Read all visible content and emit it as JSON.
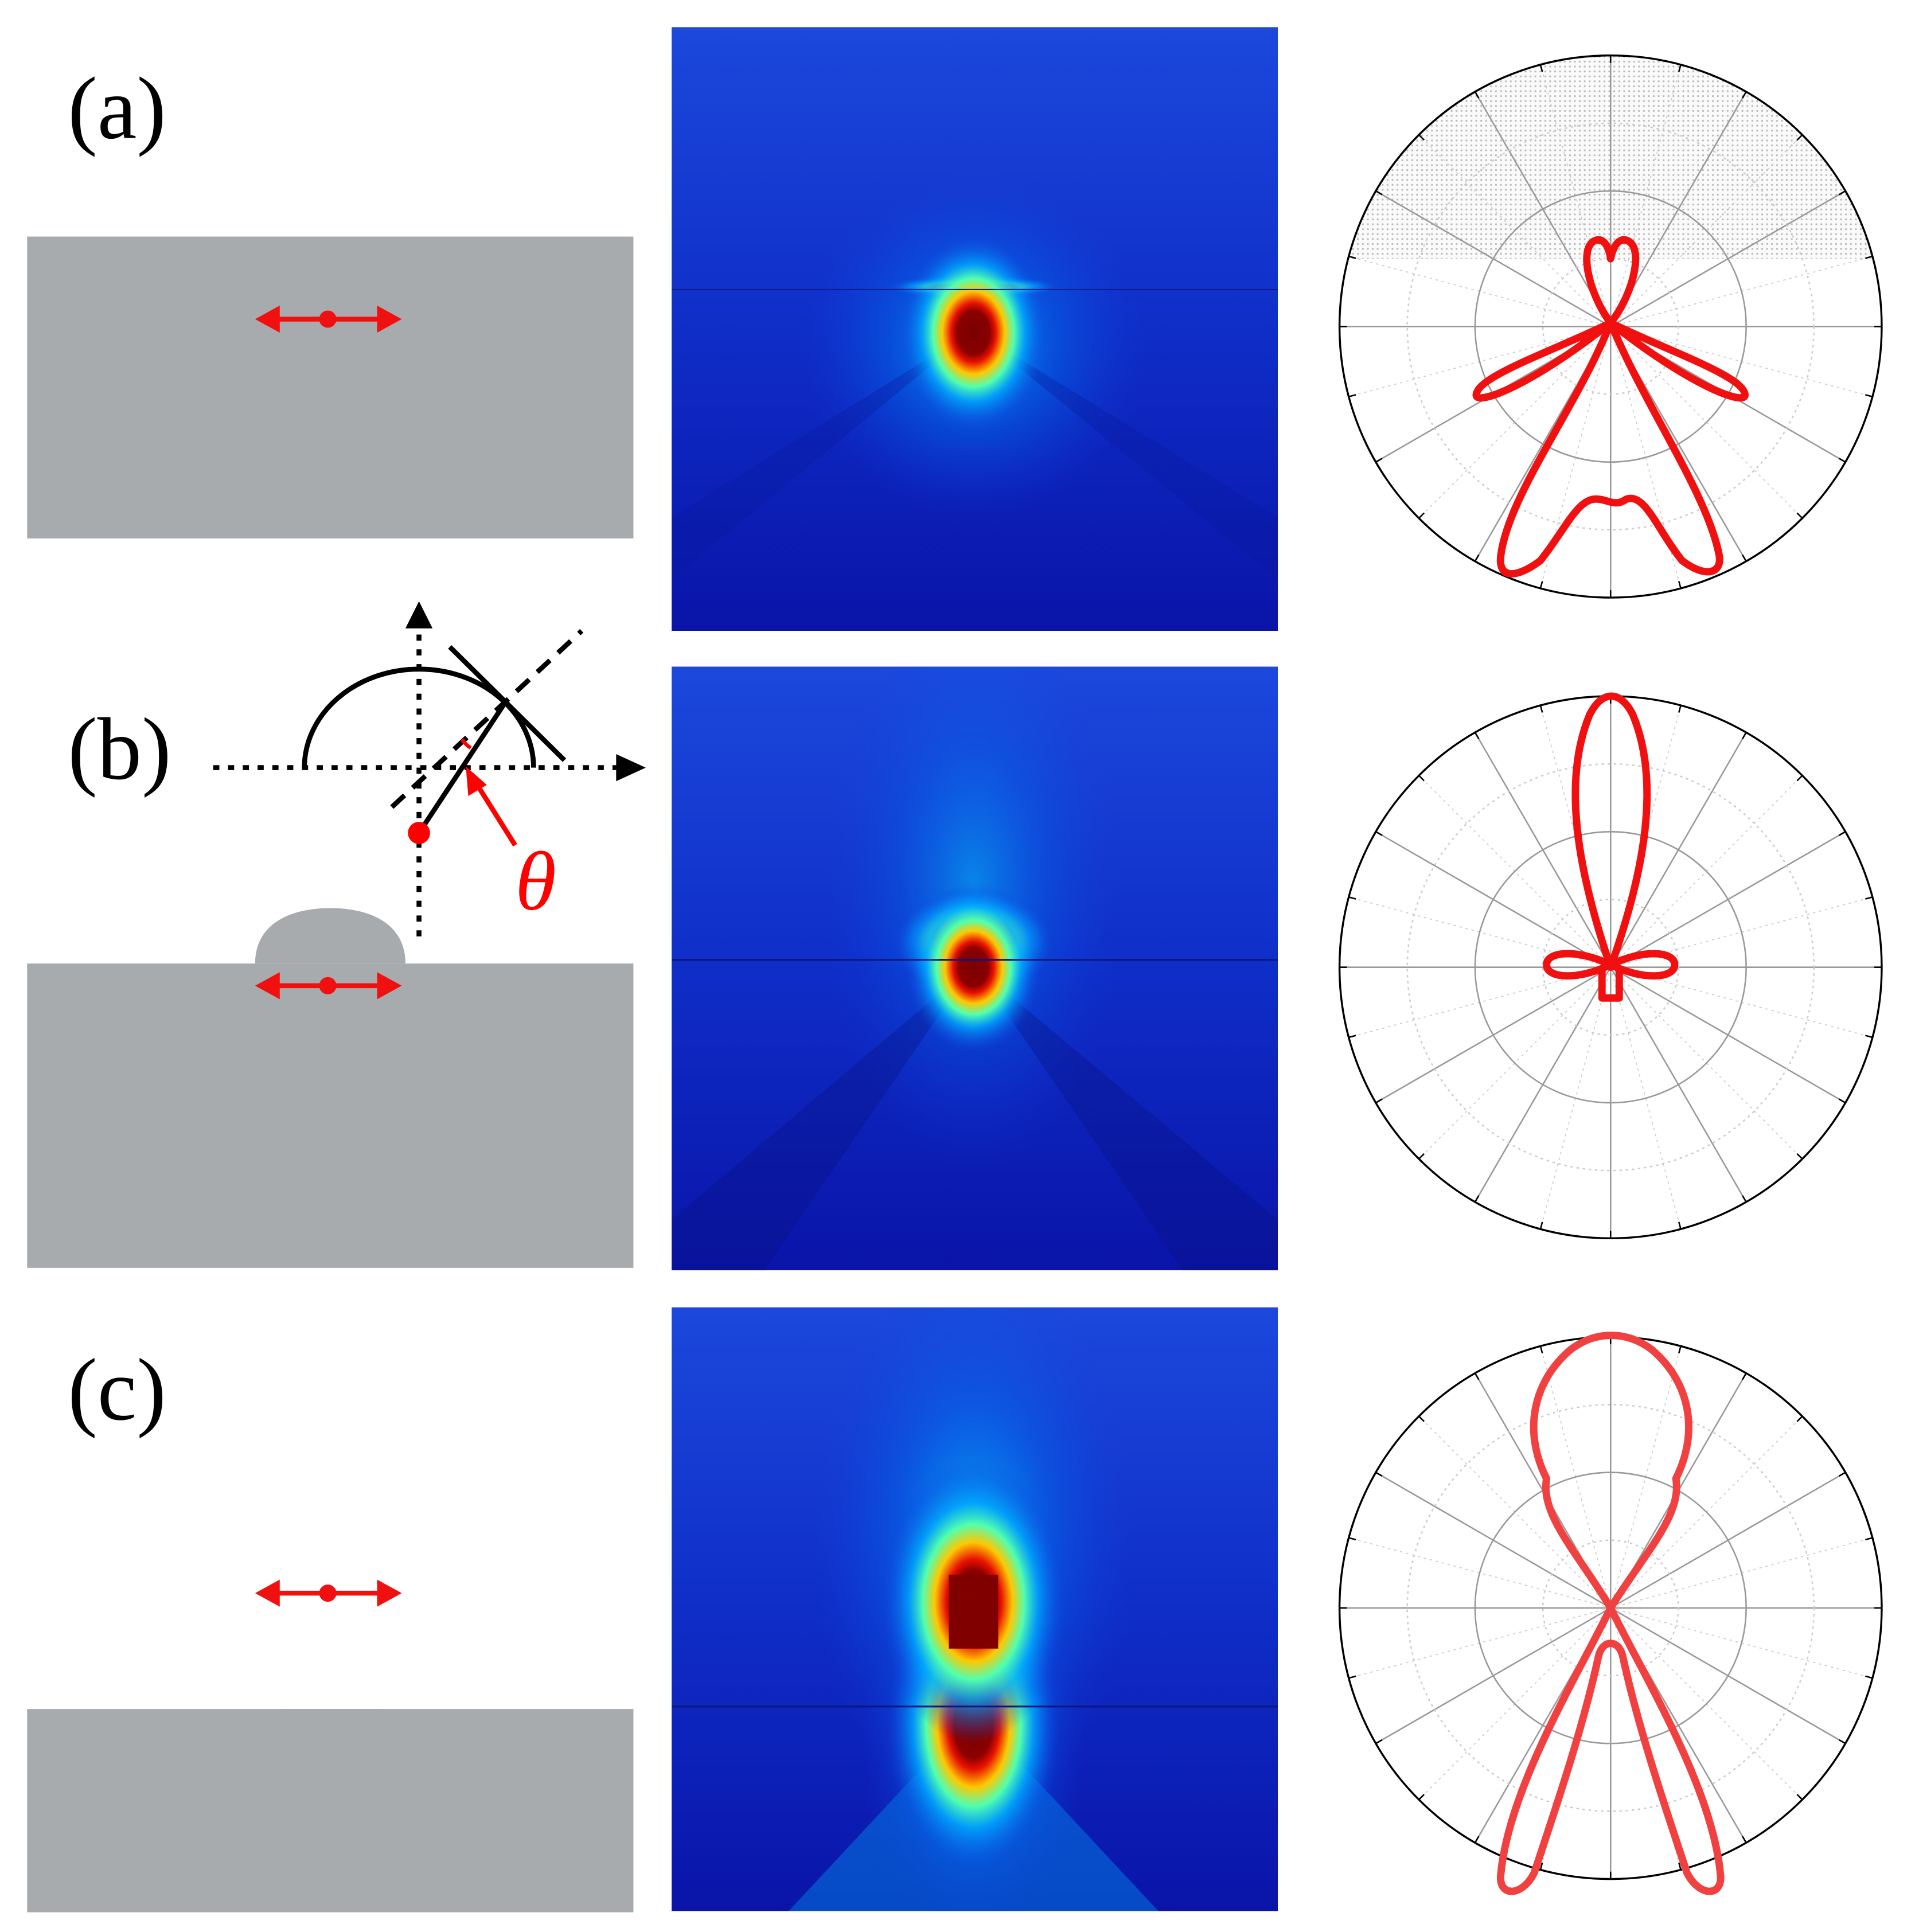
{
  "panels": [
    {
      "label": "(a)"
    },
    {
      "label": "(b)"
    },
    {
      "label": "(c)"
    }
  ],
  "theta_label": "θ"
}
